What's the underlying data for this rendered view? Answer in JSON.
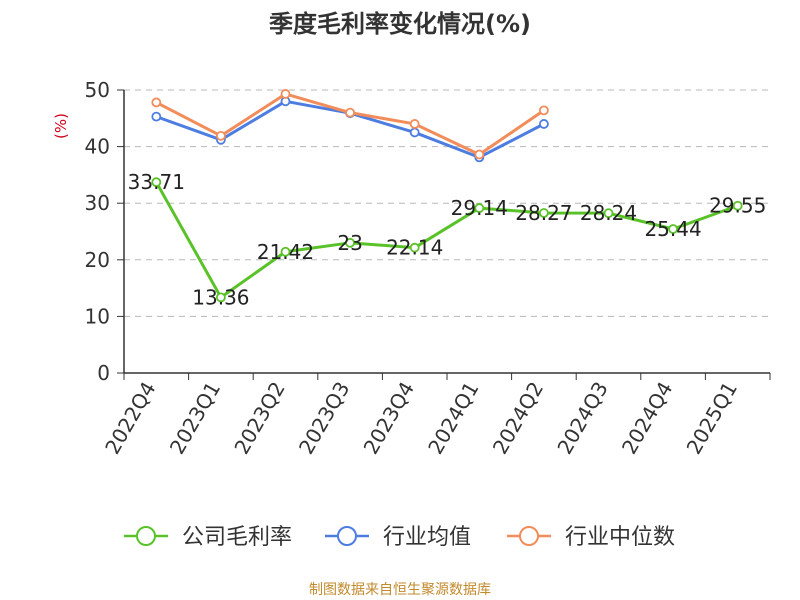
{
  "chart_data": {
    "type": "line",
    "title": "季度毛利率变化情况(%)",
    "ylabel": "(%)",
    "ylim": [
      0,
      50
    ],
    "yticks": [
      0,
      10,
      20,
      30,
      40,
      50
    ],
    "grid": true,
    "categories": [
      "2022Q4",
      "2023Q1",
      "2023Q2",
      "2023Q3",
      "2023Q4",
      "2024Q1",
      "2024Q2",
      "2024Q3",
      "2024Q4",
      "2025Q1"
    ],
    "series": [
      {
        "name": "公司毛利率",
        "color": "#5ac229",
        "values": [
          33.71,
          13.36,
          21.42,
          23,
          22.14,
          29.14,
          28.27,
          28.24,
          25.44,
          29.55
        ],
        "labels": [
          "33.71",
          "13.36",
          "21.42",
          "23",
          "22.14",
          "29.14",
          "28.27",
          "28.24",
          "25.44",
          "29.55"
        ]
      },
      {
        "name": "行业均值",
        "color": "#4d7de0",
        "values": [
          45.3,
          41.2,
          48.0,
          45.9,
          42.5,
          38.1,
          44.0,
          null,
          null,
          null
        ]
      },
      {
        "name": "行业中位数",
        "color": "#f28c5a",
        "values": [
          47.8,
          41.9,
          49.3,
          46.0,
          44.0,
          38.6,
          46.4,
          null,
          null,
          null
        ]
      }
    ],
    "legend": "bottom"
  },
  "source": "制图数据来自恒生聚源数据库"
}
